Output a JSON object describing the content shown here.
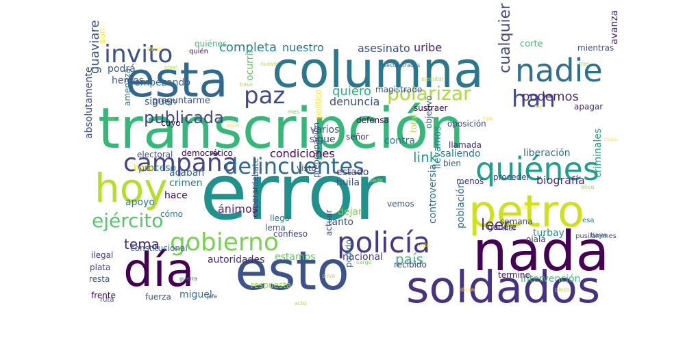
{
  "words": [
    {
      "t": "error",
      "c": "#21918c"
    },
    {
      "t": "transcripción",
      "c": "#35b779"
    },
    {
      "t": "columna",
      "c": "#2a788e"
    },
    {
      "t": "esta",
      "c": "#31688e"
    },
    {
      "t": "nada",
      "c": "#440154"
    },
    {
      "t": "soldados",
      "c": "#46327e"
    },
    {
      "t": "día",
      "c": "#440154"
    },
    {
      "t": "esto",
      "c": "#3b528b"
    },
    {
      "t": "petro",
      "c": "#cde11d"
    },
    {
      "t": "hoy",
      "c": "#b5de2b"
    },
    {
      "t": "quiénes",
      "c": "#1f9e89"
    },
    {
      "t": "policía",
      "c": "#443983"
    },
    {
      "t": "gobierno",
      "c": "#7ad151"
    },
    {
      "t": "campaña",
      "c": "#414487"
    },
    {
      "t": "delincuentes",
      "c": "#306a8e"
    },
    {
      "t": "nadie",
      "c": "#2e6e8e"
    },
    {
      "t": "han",
      "c": "#3e4a89"
    },
    {
      "t": "invito",
      "c": "#3b528b"
    },
    {
      "t": "paz",
      "c": "#3e4989"
    },
    {
      "t": "polarizar",
      "c": "#a8db34"
    },
    {
      "t": "ejército",
      "c": "#54c568"
    },
    {
      "t": "tema",
      "c": "#482878"
    },
    {
      "t": "país",
      "c": "#38b977"
    },
    {
      "t": "publicada",
      "c": "#404688"
    },
    {
      "t": "leer",
      "c": "#46307e"
    },
    {
      "t": "completa",
      "c": "#25838e"
    },
    {
      "t": "nuestro",
      "c": "#2c728e"
    },
    {
      "t": "asesinato",
      "c": "#3d4d8a"
    },
    {
      "t": "uribe",
      "c": "#482173"
    },
    {
      "t": "corte",
      "c": "#3dbc74"
    },
    {
      "t": "quiero",
      "c": "#29af7f"
    },
    {
      "t": "denuncia",
      "c": "#3b528b"
    },
    {
      "t": "link",
      "c": "#1f9a8a"
    },
    {
      "t": "cualquier",
      "c": "#3f4889"
    },
    {
      "t": "podemos",
      "c": "#472d7b"
    },
    {
      "t": "siguen",
      "c": "#355f8d"
    },
    {
      "t": "biografía",
      "c": "#482878"
    },
    {
      "t": "liberación",
      "c": "#2d708e"
    },
    {
      "t": "saliendo",
      "c": "#2a788e"
    },
    {
      "t": "condiciones",
      "c": "#440154"
    },
    {
      "t": "guaviare",
      "c": "#3b528b"
    },
    {
      "t": "absolutamente",
      "c": "#3e4c8a"
    },
    {
      "t": "proceso",
      "c": "#2a788e"
    },
    {
      "t": "acaban",
      "c": "#31688e"
    },
    {
      "t": "crimen",
      "c": "#2a788e"
    },
    {
      "t": "hace",
      "c": "#440154"
    },
    {
      "t": "apoyo",
      "c": "#2a788e"
    },
    {
      "t": "ánimos",
      "c": "#482677"
    },
    {
      "t": "estado",
      "c": "#433e85"
    },
    {
      "t": "huila",
      "c": "#3b528b"
    },
    {
      "t": "tanto",
      "c": "#3e4989"
    },
    {
      "t": "dejar",
      "c": "#7ad151"
    },
    {
      "t": "vemos",
      "c": "#355f8d"
    },
    {
      "t": "llevamos",
      "c": "#27808e"
    },
    {
      "t": "turbay",
      "c": "#21918c"
    },
    {
      "t": "criminales",
      "c": "#20a386"
    },
    {
      "t": "ojalá",
      "c": "#482878"
    },
    {
      "t": "semana",
      "c": "#404688"
    },
    {
      "t": "constitucional",
      "c": "#355f8d"
    },
    {
      "t": "ilegal",
      "c": "#453781"
    },
    {
      "t": "plata",
      "c": "#414487"
    },
    {
      "t": "resta",
      "c": "#3b528b"
    },
    {
      "t": "frente",
      "c": "#440154"
    },
    {
      "t": "fuerza",
      "c": "#3b528b"
    },
    {
      "t": "miguel",
      "c": "#2c728e"
    },
    {
      "t": "autoridades",
      "c": "#482878"
    },
    {
      "t": "estamos",
      "c": "#5ec962"
    },
    {
      "t": "nacional",
      "c": "#453781"
    },
    {
      "t": "recibido",
      "c": "#433e85"
    },
    {
      "t": "intervención",
      "c": "#3aba76"
    },
    {
      "t": "termine",
      "c": "#440154"
    },
    {
      "t": "población",
      "c": "#2d708e"
    },
    {
      "t": "controversia",
      "c": "#2e6e8e"
    },
    {
      "t": "respuesta",
      "c": "#95d840"
    },
    {
      "t": "podido",
      "c": "#31688e"
    },
    {
      "t": "actuar",
      "c": "#3e4989"
    },
    {
      "t": "confieso",
      "c": "#414487"
    },
    {
      "t": "lema",
      "c": "#3b528b"
    },
    {
      "t": "llegó",
      "c": "#2a788e"
    },
    {
      "t": "esperar",
      "c": "#46327e"
    },
    {
      "t": "preocupación",
      "c": "#3b528b"
    },
    {
      "t": "sigue",
      "c": "#404688"
    },
    {
      "t": "varios",
      "c": "#3b528b"
    },
    {
      "t": "señor",
      "c": "#472d7b"
    },
    {
      "t": "visto",
      "c": "#3e4c8a"
    },
    {
      "t": "total",
      "c": "#b5de2b"
    },
    {
      "t": "objetivo",
      "c": "#31688e"
    },
    {
      "t": "llamada",
      "c": "#472d7b"
    },
    {
      "t": "contra",
      "c": "#2a788e"
    },
    {
      "t": "bien",
      "c": "#3b528b"
    },
    {
      "t": "menos",
      "c": "#453781"
    },
    {
      "t": "proceder",
      "c": "#414487"
    },
    {
      "t": "genere",
      "c": "#482475"
    },
    {
      "t": "defensa",
      "c": "#440154"
    },
    {
      "t": "político",
      "c": "#fde725"
    },
    {
      "t": "debate",
      "c": "#3b528b"
    },
    {
      "t": "electoral",
      "c": "#404688"
    },
    {
      "t": "democrático",
      "c": "#440154"
    },
    {
      "t": "hora",
      "c": "#fde725"
    },
    {
      "t": "cómo",
      "c": "#2a788e"
    },
    {
      "t": "cuyo",
      "c": "#440154"
    },
    {
      "t": "amenaza",
      "c": "#2a788e"
    },
    {
      "t": "empezando",
      "c": "#31688e"
    },
    {
      "t": "hemos",
      "c": "#3b528b"
    },
    {
      "t": "podrá",
      "c": "#38588c"
    },
    {
      "t": "aún",
      "c": "#fde725"
    },
    {
      "t": "preguntarme",
      "c": "#3e4989"
    },
    {
      "t": "ocurrir",
      "c": "#5ec962"
    },
    {
      "t": "oposición",
      "c": "#3e4989"
    },
    {
      "t": "sustraer",
      "c": "#440154"
    },
    {
      "t": "apagar",
      "c": "#482878"
    },
    {
      "t": "mientras",
      "c": "#3b528b"
    },
    {
      "t": "avanza",
      "c": "#482878"
    },
    {
      "t": "quiénes",
      "c": "#3dbc74"
    },
    {
      "t": "quién",
      "c": "#440154"
    },
    {
      "t": "magistrado",
      "c": "#3b528b"
    },
    {
      "t": "mal",
      "c": "#3b528b"
    },
    {
      "t": "esa",
      "c": "#2a788e"
    },
    {
      "t": "haya",
      "c": "#3b528b"
    },
    {
      "t": "pusilánimes",
      "c": "#3b528b"
    },
    {
      "t": "ruta",
      "c": "#3b528b"
    },
    {
      "t": "secuestrados",
      "c": "#31688e"
    },
    {
      "t": "nueve",
      "c": "#b5de2b"
    },
    {
      "t": "doce",
      "c": "#fde725"
    },
    {
      "t": "sirve",
      "c": "#b5de2b"
    },
    {
      "t": "ejecutar",
      "c": "#b5de2b"
    },
    {
      "t": "guerra",
      "c": "#2a788e"
    },
    {
      "t": "dicen",
      "c": "#fde725"
    },
    {
      "t": "once",
      "c": "#95d840"
    },
    {
      "t": "jefe",
      "c": "#3b528b"
    },
    {
      "t": "mes",
      "c": "#7ad151"
    },
    {
      "t": "tipo",
      "c": "#fde725"
    },
    {
      "t": "sede",
      "c": "#b5de2b"
    },
    {
      "t": "papel",
      "c": "#fde725"
    },
    {
      "t": "plazo",
      "c": "#b5de2b"
    },
    {
      "t": "tres",
      "c": "#95d840"
    },
    {
      "t": "voto",
      "c": "#fde725"
    },
    {
      "t": "acto",
      "c": "#b5de2b"
    },
    {
      "t": "cargo",
      "c": "#7ad151"
    },
    {
      "t": "ley",
      "c": "#fde725"
    },
    {
      "t": "rol",
      "c": "#95d840"
    },
    {
      "t": "duda",
      "c": "#fde725"
    },
    {
      "t": "nivel",
      "c": "#b5de2b"
    },
    {
      "t": "cosa",
      "c": "#fde725"
    },
    {
      "t": "base",
      "c": "#b5de2b"
    },
    {
      "t": "lado",
      "c": "#95d840"
    },
    {
      "t": "dato",
      "c": "#fde725"
    },
    {
      "t": "mano",
      "c": "#b5de2b"
    }
  ]
}
